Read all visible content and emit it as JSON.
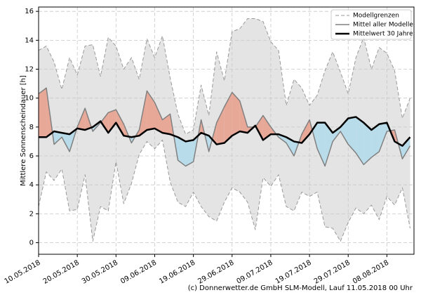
{
  "chart_data": {
    "type": "line",
    "ylabel": "Mittlere Sonnenscheindauer [h]",
    "footer": "(c) Donnerwetter.de GmbH SLM-Modell, Lauf 11.05.2018 00 Uhr",
    "x": [
      "2018-05-10",
      "2018-05-12",
      "2018-05-14",
      "2018-05-16",
      "2018-05-18",
      "2018-05-20",
      "2018-05-22",
      "2018-05-24",
      "2018-05-26",
      "2018-05-28",
      "2018-05-30",
      "2018-06-01",
      "2018-06-03",
      "2018-06-05",
      "2018-06-07",
      "2018-06-09",
      "2018-06-11",
      "2018-06-13",
      "2018-06-15",
      "2018-06-17",
      "2018-06-19",
      "2018-06-21",
      "2018-06-23",
      "2018-06-25",
      "2018-06-27",
      "2018-06-29",
      "2018-07-01",
      "2018-07-03",
      "2018-07-05",
      "2018-07-07",
      "2018-07-09",
      "2018-07-11",
      "2018-07-13",
      "2018-07-15",
      "2018-07-17",
      "2018-07-19",
      "2018-07-21",
      "2018-07-23",
      "2018-07-25",
      "2018-07-27",
      "2018-07-29",
      "2018-07-31",
      "2018-08-02",
      "2018-08-04",
      "2018-08-06",
      "2018-08-08",
      "2018-08-10",
      "2018-08-12",
      "2018-08-14"
    ],
    "series": [
      {
        "name": "Modellgrenzen",
        "color": "#999999",
        "linestyle": "dashed",
        "linewidth": 1,
        "upper": [
          13.3,
          13.6,
          12.5,
          10.6,
          12.8,
          11.6,
          13.6,
          13.7,
          11.5,
          14.2,
          13.6,
          12.0,
          12.8,
          11.3,
          14.1,
          12.8,
          14.3,
          11.4,
          8.9,
          7.5,
          7.8,
          10.9,
          8.8,
          13.2,
          11.2,
          14.6,
          14.8,
          15.5,
          15.5,
          15.3,
          13.9,
          13.3,
          9.5,
          11.3,
          10.7,
          9.5,
          10.2,
          11.9,
          13.2,
          11.8,
          10.3,
          12.8,
          14.2,
          12.0,
          13.5,
          13.1,
          11.9,
          8.6,
          10.0
        ],
        "lower": [
          2.5,
          4.9,
          4.3,
          5.1,
          2.2,
          2.3,
          4.7,
          0.1,
          2.5,
          2.2,
          5.6,
          2.7,
          4.1,
          6.1,
          7.0,
          6.5,
          7.1,
          4.2,
          2.8,
          2.5,
          3.5,
          2.5,
          1.8,
          1.5,
          2.8,
          3.8,
          3.5,
          2.8,
          0.9,
          4.5,
          3.9,
          4.7,
          2.5,
          2.2,
          3.5,
          3.2,
          3.5,
          1.1,
          1.0,
          0.1,
          1.4,
          2.4,
          2.0,
          2.6,
          1.6,
          3.2,
          2.6,
          3.8,
          1.0
        ]
      },
      {
        "name": "Mittel aller Modelle",
        "color": "#808080",
        "linestyle": "solid",
        "linewidth": 1.5,
        "values": [
          10.3,
          10.7,
          6.8,
          7.3,
          6.3,
          8.0,
          9.3,
          7.7,
          8.3,
          9.0,
          9.2,
          8.2,
          6.9,
          7.8,
          10.5,
          9.7,
          8.5,
          8.9,
          5.7,
          5.3,
          5.6,
          8.5,
          6.3,
          8.3,
          9.4,
          10.4,
          9.8,
          8.0,
          8.0,
          8.8,
          8.0,
          7.3,
          6.9,
          6.0,
          7.5,
          8.5,
          6.5,
          5.3,
          7.0,
          7.7,
          6.8,
          6.2,
          5.4,
          5.9,
          6.3,
          7.7,
          7.8,
          5.8,
          6.7
        ]
      },
      {
        "name": "Mittelwert 30 Jahre",
        "color": "#000000",
        "linestyle": "solid",
        "linewidth": 2.5,
        "values": [
          7.3,
          7.3,
          7.7,
          7.6,
          7.5,
          7.9,
          7.8,
          8.0,
          8.4,
          7.6,
          8.3,
          7.4,
          7.3,
          7.4,
          7.8,
          7.9,
          7.6,
          7.5,
          7.3,
          7.0,
          7.1,
          7.6,
          7.4,
          6.8,
          6.9,
          7.4,
          7.7,
          7.6,
          8.1,
          7.1,
          7.5,
          7.5,
          7.3,
          7.0,
          6.9,
          7.5,
          8.3,
          8.3,
          7.6,
          8.0,
          8.6,
          8.7,
          8.3,
          7.8,
          8.2,
          8.3,
          7.0,
          6.7,
          7.3
        ]
      }
    ],
    "range_fill": "#e4e4e4",
    "above_fill": "#e8a898",
    "below_fill": "#b8dcea",
    "xlim": [
      "2018-05-10",
      "2018-08-15"
    ],
    "xticks": [
      {
        "value": "2018-05-10",
        "label": "10.05.2018"
      },
      {
        "value": "2018-05-20",
        "label": "20.05.2018"
      },
      {
        "value": "2018-05-30",
        "label": "30.05.2018"
      },
      {
        "value": "2018-06-09",
        "label": "09.06.2018"
      },
      {
        "value": "2018-06-19",
        "label": "19.06.2018"
      },
      {
        "value": "2018-06-29",
        "label": "29.06.2018"
      },
      {
        "value": "2018-07-09",
        "label": "09.07.2018"
      },
      {
        "value": "2018-07-19",
        "label": "19.07.2018"
      },
      {
        "value": "2018-07-29",
        "label": "29.07.2018"
      },
      {
        "value": "2018-08-08",
        "label": "08.08.2018"
      }
    ],
    "ylim": [
      -0.8,
      16.3
    ],
    "yticks": [
      0,
      2,
      4,
      6,
      8,
      10,
      12,
      14,
      16
    ],
    "grid": true,
    "legend": "upper right"
  }
}
